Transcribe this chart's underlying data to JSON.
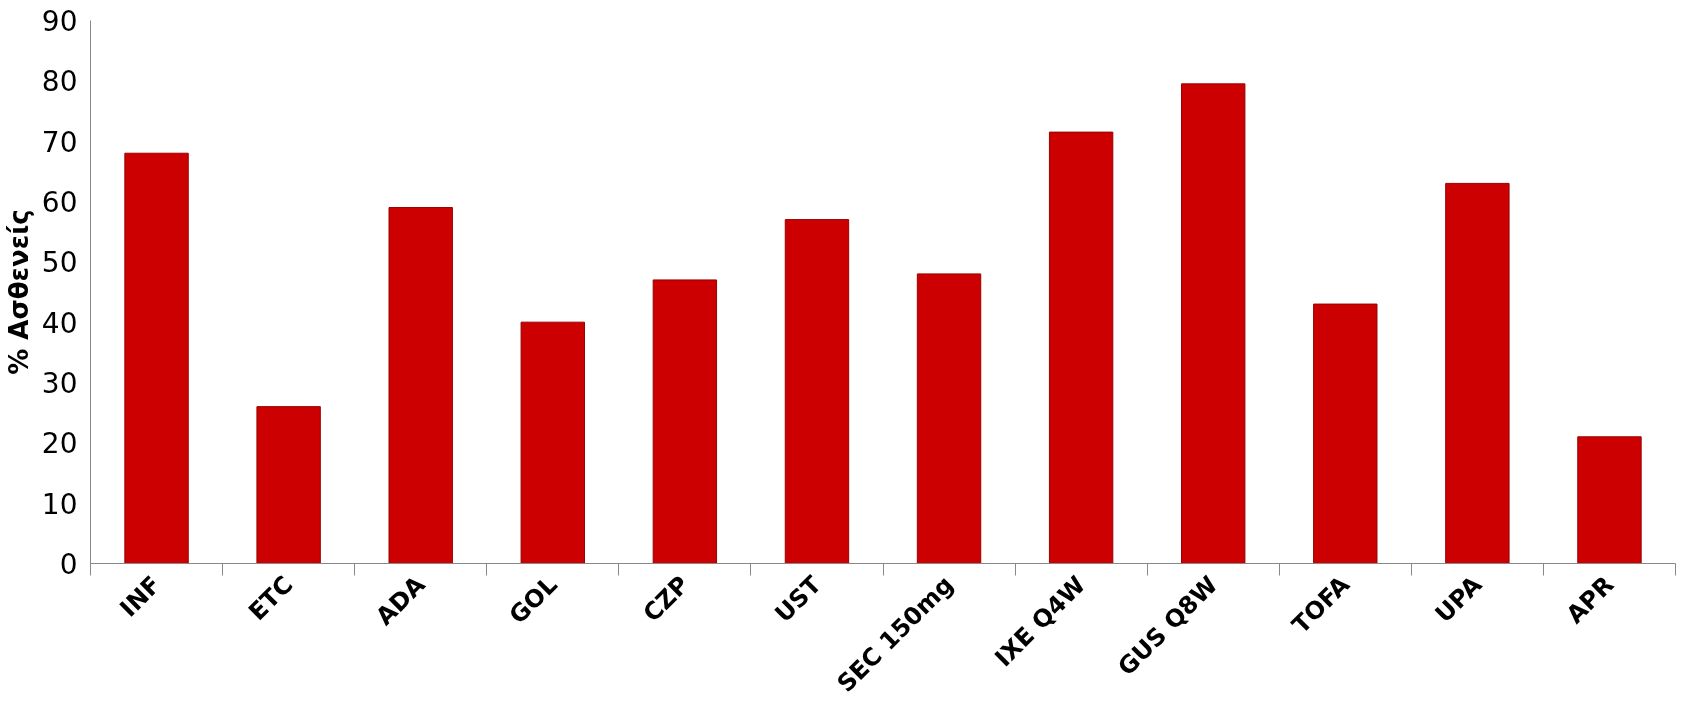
{
  "chart_data": {
    "type": "bar",
    "ylabel": "% Ασθενείς",
    "categories": [
      "INF",
      "ETC",
      "ADA",
      "GOL",
      "CZP",
      "UST",
      "SEC 150mg",
      "IXE Q4W",
      "GUS Q8W",
      "TOFA",
      "UPA",
      "APR"
    ],
    "values": [
      68,
      26,
      59,
      40,
      47,
      57,
      48,
      71.5,
      79.5,
      43,
      63,
      21
    ],
    "color": "#cc0000",
    "ylim": [
      0,
      90
    ],
    "yticks": [
      0,
      10,
      20,
      30,
      40,
      50,
      60,
      70,
      80,
      90
    ],
    "grid": false
  }
}
